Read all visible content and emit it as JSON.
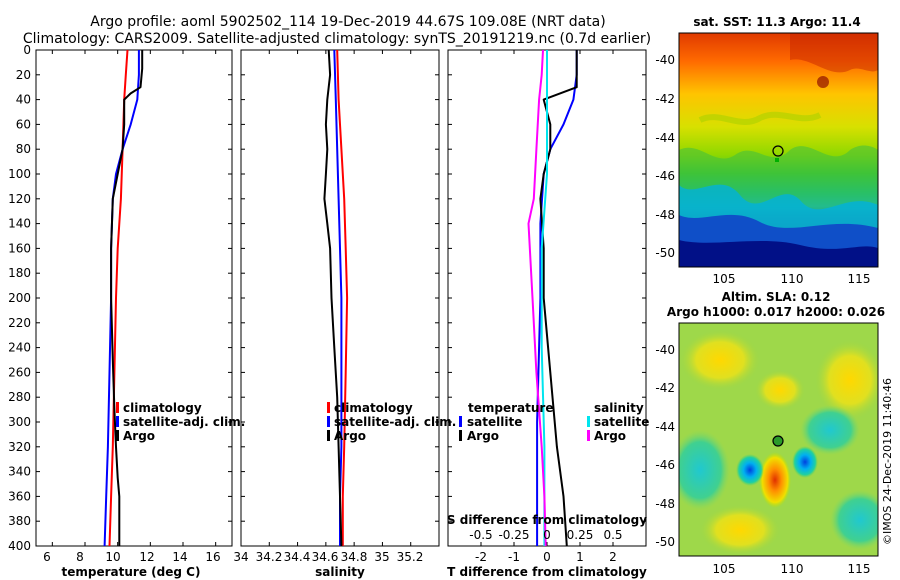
{
  "header": {
    "line1": "Argo profile: aoml 5902502_114 19-Dec-2019 44.67S 109.08E (NRT data)",
    "line2": "Climatology: CARS2009. Satellite-adjusted climatology: synTS_20191219.nc (0.7d earlier)"
  },
  "colors": {
    "climatology": "#ff0000",
    "satellite_clim": "#0000ff",
    "argo": "#000000",
    "s_satellite": "#00e5ee",
    "s_argo": "#ff00ff"
  },
  "depth_axis": {
    "ticks": [
      "0",
      "20",
      "40",
      "60",
      "80",
      "100",
      "120",
      "140",
      "160",
      "180",
      "200",
      "220",
      "240",
      "260",
      "280",
      "300",
      "320",
      "340",
      "360",
      "380",
      "400"
    ],
    "range": [
      0,
      400
    ]
  },
  "chart_data": [
    {
      "type": "line",
      "name": "temperature-profile",
      "xlabel": "temperature (deg C)",
      "xlim": [
        5,
        17
      ],
      "xticks": [
        "6",
        "8",
        "10",
        "12",
        "14",
        "16"
      ],
      "ylim": [
        0,
        400
      ],
      "legend": [
        "climatology",
        "satellite-adj. clim.",
        "Argo"
      ],
      "series": [
        {
          "name": "climatology",
          "color": "#ff0000",
          "points": [
            [
              10.6,
              0
            ],
            [
              10.5,
              20
            ],
            [
              10.4,
              40
            ],
            [
              10.3,
              80
            ],
            [
              10.2,
              120
            ],
            [
              10.0,
              160
            ],
            [
              9.9,
              200
            ],
            [
              9.8,
              260
            ],
            [
              9.7,
              320
            ],
            [
              9.6,
              360
            ],
            [
              9.5,
              400
            ]
          ]
        },
        {
          "name": "satellite-adj. clim.",
          "color": "#0000ff",
          "points": [
            [
              11.3,
              0
            ],
            [
              11.3,
              20
            ],
            [
              11.2,
              40
            ],
            [
              10.8,
              60
            ],
            [
              10.3,
              80
            ],
            [
              9.9,
              100
            ],
            [
              9.7,
              120
            ],
            [
              9.6,
              160
            ],
            [
              9.6,
              200
            ],
            [
              9.5,
              260
            ],
            [
              9.4,
              320
            ],
            [
              9.3,
              360
            ],
            [
              9.2,
              400
            ]
          ]
        },
        {
          "name": "Argo",
          "color": "#000000",
          "points": [
            [
              11.5,
              0
            ],
            [
              11.5,
              15
            ],
            [
              11.4,
              30
            ],
            [
              10.8,
              35
            ],
            [
              10.4,
              40
            ],
            [
              10.4,
              60
            ],
            [
              10.3,
              80
            ],
            [
              10.0,
              100
            ],
            [
              9.7,
              120
            ],
            [
              9.6,
              160
            ],
            [
              9.6,
              200
            ],
            [
              9.7,
              250
            ],
            [
              9.8,
              290
            ],
            [
              9.9,
              320
            ],
            [
              10.0,
              345
            ],
            [
              10.1,
              360
            ],
            [
              10.1,
              400
            ]
          ]
        }
      ]
    },
    {
      "type": "line",
      "name": "salinity-profile",
      "xlabel": "salinity",
      "xlim": [
        34,
        35.4
      ],
      "xticks": [
        "34",
        "34.2",
        "34.4",
        "34.6",
        "34.8",
        "35",
        "35.2"
      ],
      "ylim": [
        0,
        400
      ],
      "legend": [
        "climatology",
        "satellite-adj. clim.",
        "Argo"
      ],
      "series": [
        {
          "name": "climatology",
          "color": "#ff0000",
          "points": [
            [
              34.68,
              0
            ],
            [
              34.69,
              40
            ],
            [
              34.71,
              80
            ],
            [
              34.73,
              120
            ],
            [
              34.74,
              160
            ],
            [
              34.75,
              200
            ],
            [
              34.74,
              260
            ],
            [
              34.73,
              320
            ],
            [
              34.72,
              360
            ],
            [
              34.72,
              400
            ]
          ]
        },
        {
          "name": "satellite-adj. clim.",
          "color": "#0000ff",
          "points": [
            [
              34.66,
              0
            ],
            [
              34.67,
              40
            ],
            [
              34.68,
              80
            ],
            [
              34.69,
              120
            ],
            [
              34.7,
              160
            ],
            [
              34.71,
              200
            ],
            [
              34.71,
              260
            ],
            [
              34.71,
              320
            ],
            [
              34.7,
              360
            ],
            [
              34.7,
              400
            ]
          ]
        },
        {
          "name": "Argo",
          "color": "#000000",
          "points": [
            [
              34.62,
              0
            ],
            [
              34.63,
              20
            ],
            [
              34.62,
              30
            ],
            [
              34.61,
              40
            ],
            [
              34.6,
              60
            ],
            [
              34.61,
              80
            ],
            [
              34.6,
              100
            ],
            [
              34.59,
              120
            ],
            [
              34.61,
              140
            ],
            [
              34.63,
              160
            ],
            [
              34.64,
              200
            ],
            [
              34.66,
              240
            ],
            [
              34.68,
              280
            ],
            [
              34.69,
              320
            ],
            [
              34.7,
              360
            ],
            [
              34.71,
              400
            ]
          ]
        }
      ]
    },
    {
      "type": "line",
      "name": "difference-profile",
      "xlabel": "T difference from climatology",
      "xlim": [
        -3,
        3
      ],
      "xticks": [
        "-2",
        "-1",
        "0",
        "1",
        "2"
      ],
      "top_label": "S difference from climatology",
      "s_ticks": [
        "-0.5",
        "-0.25",
        "0",
        "0.25",
        "0.5"
      ],
      "ylim": [
        0,
        400
      ],
      "legend_temperature": {
        "title": "temperature",
        "items": [
          "satellite",
          "Argo"
        ]
      },
      "legend_salinity": {
        "title": "salinity",
        "items": [
          "satellite",
          "Argo"
        ]
      },
      "series": [
        {
          "name": "T satellite",
          "color": "#0000ff",
          "points": [
            [
              0.9,
              0
            ],
            [
              0.9,
              20
            ],
            [
              0.8,
              40
            ],
            [
              0.5,
              60
            ],
            [
              0.1,
              80
            ],
            [
              -0.1,
              100
            ],
            [
              -0.2,
              140
            ],
            [
              -0.2,
              200
            ],
            [
              -0.3,
              300
            ],
            [
              -0.3,
              400
            ]
          ]
        },
        {
          "name": "T Argo",
          "color": "#000000",
          "points": [
            [
              0.9,
              0
            ],
            [
              0.9,
              15
            ],
            [
              0.9,
              30
            ],
            [
              -0.1,
              40
            ],
            [
              0.1,
              60
            ],
            [
              0.1,
              80
            ],
            [
              -0.1,
              100
            ],
            [
              -0.2,
              120
            ],
            [
              -0.1,
              160
            ],
            [
              -0.1,
              200
            ],
            [
              0.1,
              260
            ],
            [
              0.3,
              320
            ],
            [
              0.5,
              360
            ],
            [
              0.6,
              400
            ]
          ]
        },
        {
          "name": "S satellite",
          "color": "#00e5ee",
          "points": [
            [
              0.0,
              0
            ],
            [
              0.0,
              40
            ],
            [
              0.0,
              100
            ],
            [
              -0.04,
              160
            ],
            [
              -0.04,
              240
            ],
            [
              -0.02,
              320
            ],
            [
              -0.02,
              400
            ]
          ]
        },
        {
          "name": "S Argo",
          "color": "#ff00ff",
          "points": [
            [
              -0.03,
              0
            ],
            [
              -0.04,
              20
            ],
            [
              -0.06,
              40
            ],
            [
              -0.08,
              80
            ],
            [
              -0.1,
              120
            ],
            [
              -0.14,
              140
            ],
            [
              -0.11,
              200
            ],
            [
              -0.08,
              260
            ],
            [
              -0.04,
              320
            ],
            [
              -0.02,
              360
            ],
            [
              -0.01,
              400
            ]
          ]
        }
      ]
    },
    {
      "type": "heatmap",
      "name": "sst-map",
      "title": "sat. SST: 11.3 Argo: 11.4",
      "xticks": [
        "105",
        "110",
        "115"
      ],
      "yticks": [
        "-40",
        "-42",
        "-44",
        "-46",
        "-48",
        "-50"
      ],
      "xlim": [
        102,
        116.5
      ],
      "ylim": [
        -51,
        -38.8
      ],
      "marker": [
        109.08,
        -44.67
      ]
    },
    {
      "type": "heatmap",
      "name": "sla-map",
      "title1": "Altim. SLA: 0.12",
      "title2": "Argo h1000: 0.017 h2000: 0.026",
      "xticks": [
        "105",
        "110",
        "115"
      ],
      "yticks": [
        "-40",
        "-42",
        "-44",
        "-46",
        "-48",
        "-50"
      ],
      "xlim": [
        102,
        116.5
      ],
      "ylim": [
        -51,
        -38.8
      ],
      "marker": [
        109.08,
        -44.67
      ]
    }
  ],
  "credit": "©IMOS 24-Dec-2019 11:40:46"
}
